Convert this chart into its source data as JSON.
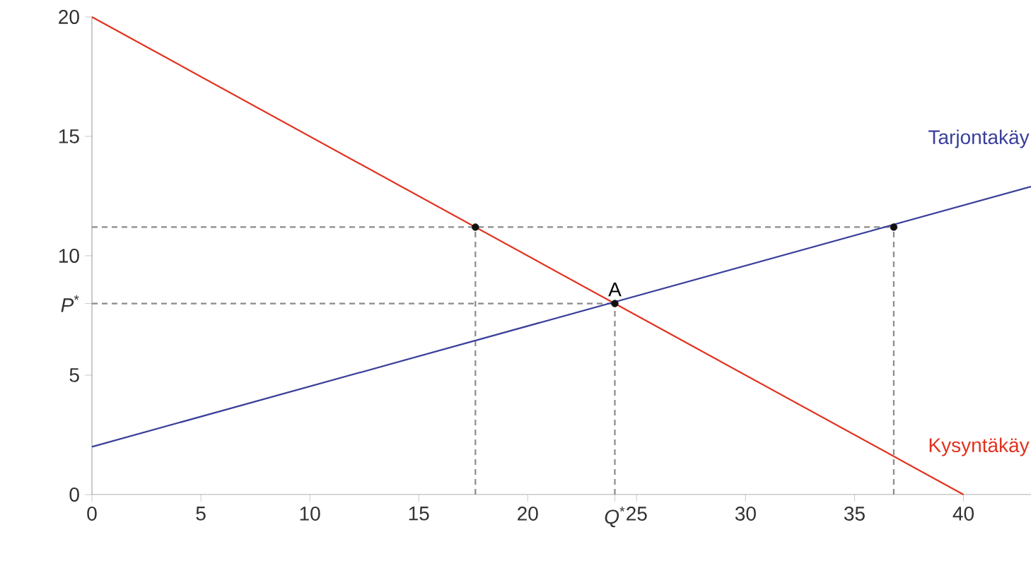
{
  "chart_data": {
    "type": "line",
    "xlim": [
      0,
      43.1
    ],
    "ylim": [
      0,
      20
    ],
    "xticks": [
      0,
      5,
      10,
      15,
      20,
      {
        "value": 24,
        "label": "*Q*$^{*}$"
      },
      25,
      30,
      35,
      40
    ],
    "yticks": [
      0,
      {
        "value": 8,
        "label": "*P*$^{*}$"
      },
      5,
      10,
      15,
      20
    ],
    "grid": false,
    "series": [
      {
        "x": [
          17.6,
          17.6
        ],
        "values": [
          0,
          11.2
        ],
        "color": "#8c8c8c",
        "line_style": "dashed"
      },
      {
        "x": [
          24,
          24
        ],
        "values": [
          0,
          8
        ],
        "color": "#8c8c8c",
        "line_style": "dashed"
      },
      {
        "x": [
          36.8,
          36.8
        ],
        "values": [
          0,
          11.2
        ],
        "color": "#8c8c8c",
        "line_style": "dashed"
      },
      {
        "x": [
          0,
          36.8
        ],
        "values": [
          11.2,
          11.2
        ],
        "color": "#8c8c8c",
        "line_style": "dashed"
      },
      {
        "x": [
          0,
          24
        ],
        "values": [
          8,
          8
        ],
        "color": "#8c8c8c",
        "line_style": "dashed"
      },
      {
        "name": "Kysyntäkäy",
        "x": [
          0,
          40
        ],
        "values": [
          20,
          0
        ],
        "color": "#e2321f",
        "line_style": "solid"
      },
      {
        "name": "Tarjontakäy",
        "x": [
          0,
          43.1
        ],
        "values": [
          2,
          12.9
        ],
        "color": "#3a3f9a",
        "line_style": "solid"
      },
      {
        "type": "scatter",
        "x": [
          17.6,
          24,
          36.8
        ],
        "values": [
          11.2,
          8,
          11.2
        ],
        "color": "#111111",
        "marker": "circle"
      }
    ],
    "annotations": [
      {
        "text": "A",
        "x": 24,
        "y": 8
      }
    ]
  }
}
